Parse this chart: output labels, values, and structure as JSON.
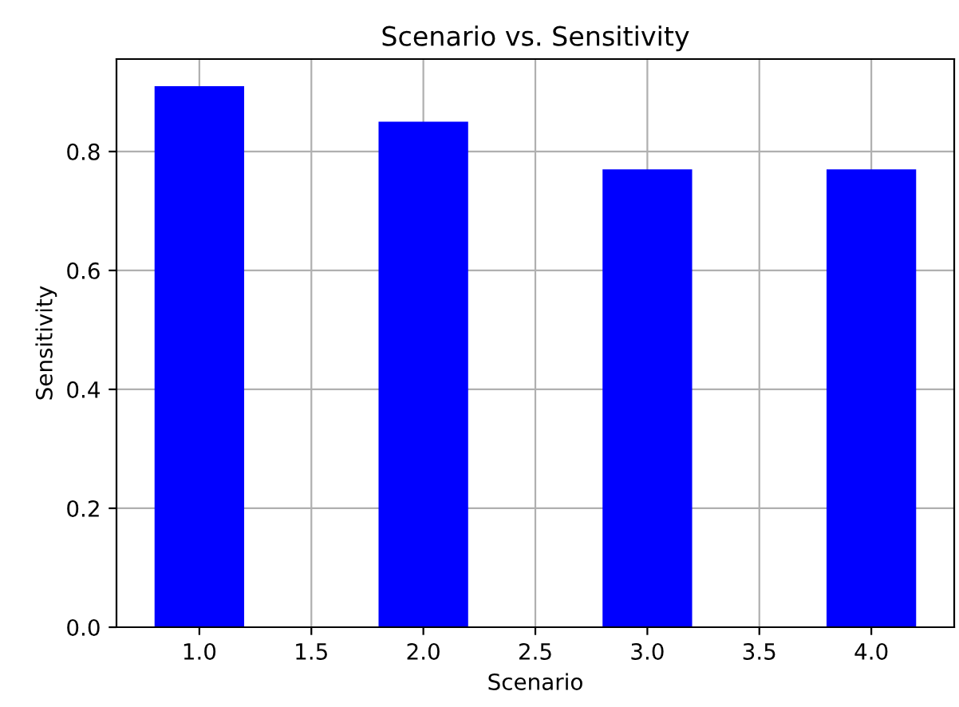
{
  "chart_data": {
    "type": "bar",
    "title": "Scenario vs. Sensitivity",
    "xlabel": "Scenario",
    "ylabel": "Sensitivity",
    "x": [
      1.0,
      2.0,
      3.0,
      4.0
    ],
    "values": [
      0.91,
      0.85,
      0.77,
      0.77
    ],
    "color": "#0000ff",
    "xlim": [
      0.63,
      4.37
    ],
    "xticks": [
      {
        "value": 1.0,
        "label": "1.0"
      },
      {
        "value": 1.5,
        "label": "1.5"
      },
      {
        "value": 2.0,
        "label": "2.0"
      },
      {
        "value": 2.5,
        "label": "2.5"
      },
      {
        "value": 3.0,
        "label": "3.0"
      },
      {
        "value": 3.5,
        "label": "3.5"
      },
      {
        "value": 4.0,
        "label": "4.0"
      }
    ],
    "ylim": [
      0,
      0.9555
    ],
    "yticks": [
      {
        "value": 0,
        "label": "0.0"
      },
      {
        "value": 0.2,
        "label": "0.2"
      },
      {
        "value": 0.4,
        "label": "0.4"
      },
      {
        "value": 0.6,
        "label": "0.6"
      },
      {
        "value": 0.8,
        "label": "0.8"
      }
    ],
    "grid": true
  }
}
